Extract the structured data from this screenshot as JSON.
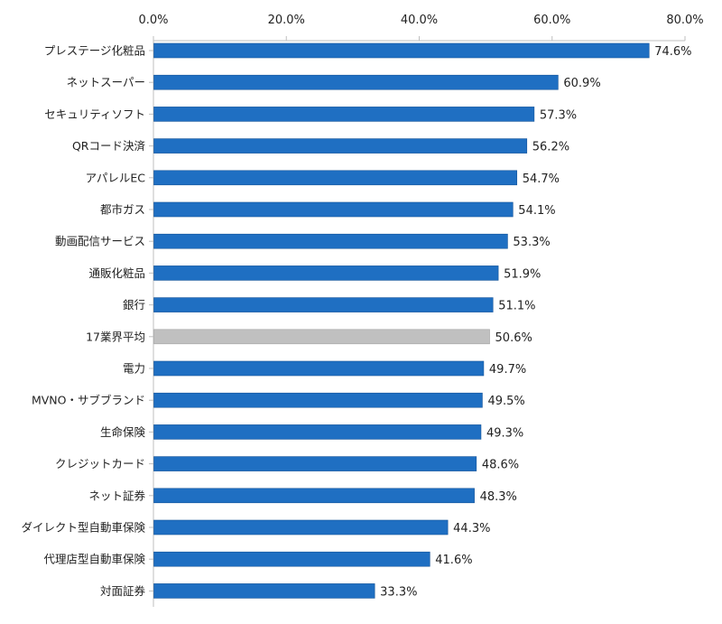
{
  "chart_data": {
    "type": "bar",
    "orientation": "horizontal",
    "categories": [
      "プレステージ化粧品",
      "ネットスーパー",
      "セキュリティソフト",
      "QRコード決済",
      "アパレルEC",
      "都市ガス",
      "動画配信サービス",
      "通販化粧品",
      "銀行",
      "17業界平均",
      "電力",
      "MVNO・サブブランド",
      "生命保険",
      "クレジットカード",
      "ネット証券",
      "ダイレクト型自動車保険",
      "代理店型自動車保険",
      "対面証券"
    ],
    "values": [
      74.6,
      60.9,
      57.3,
      56.2,
      54.7,
      54.1,
      53.3,
      51.9,
      51.1,
      50.6,
      49.7,
      49.5,
      49.3,
      48.6,
      48.3,
      44.3,
      41.6,
      33.3
    ],
    "value_labels": [
      "74.6%",
      "60.9%",
      "57.3%",
      "56.2%",
      "54.7%",
      "54.1%",
      "53.3%",
      "51.9%",
      "51.1%",
      "50.6%",
      "49.7%",
      "49.5%",
      "49.3%",
      "48.6%",
      "48.3%",
      "44.3%",
      "41.6%",
      "33.3%"
    ],
    "highlight_category": "17業界平均",
    "xlim": [
      0,
      80
    ],
    "xticks": [
      0,
      20,
      40,
      60,
      80
    ],
    "xtick_labels": [
      "0.0%",
      "20.0%",
      "40.0%",
      "60.0%",
      "80.0%"
    ],
    "x_axis_position": "top",
    "grid": false,
    "colors": {
      "bar": "#1f6fc2",
      "bar_border": "#17559a",
      "highlight": "#c0c0c0",
      "highlight_border": "#a6a6a6",
      "axis": "#bfbfbf"
    }
  }
}
